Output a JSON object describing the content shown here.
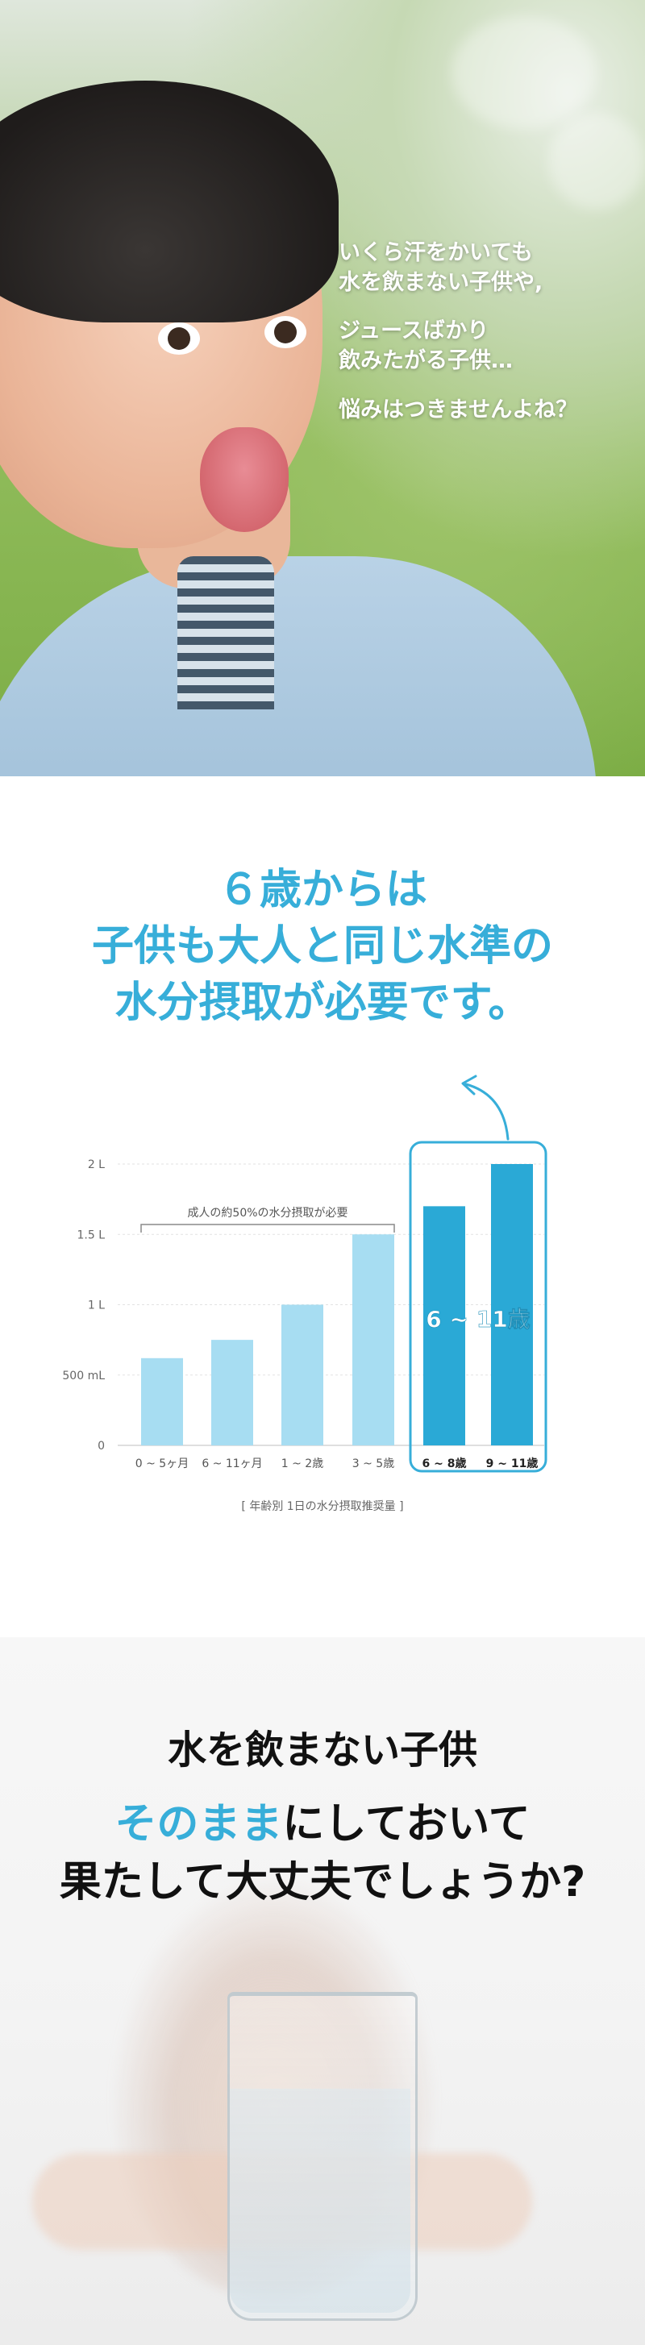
{
  "hero": {
    "lines": [
      "いくら汗をかいても",
      "水を飲まない子供や,",
      "ジュースばかり",
      "飲みたがる子供…",
      "悩みはつきませんよね？"
    ]
  },
  "headline": [
    "６歳からは",
    "子供も大人と同じ水準の",
    "水分摂取が必要です。"
  ],
  "chart_data": {
    "type": "bar",
    "categories": [
      "0 ~ 5ヶ月",
      "6 ~ 11ヶ月",
      "1 ~ 2歳",
      "3 ~ 5歳",
      "6 ~ 8歳",
      "9 ~ 11歳"
    ],
    "values": [
      0.62,
      0.75,
      1.0,
      1.5,
      1.7,
      2.0
    ],
    "unit": "L",
    "ylim": [
      0,
      2
    ],
    "y_ticks": [
      {
        "value": 0,
        "label": "0"
      },
      {
        "value": 0.5,
        "label": "500 mL"
      },
      {
        "value": 1,
        "label": "1 L"
      },
      {
        "value": 1.5,
        "label": "1.5 L"
      },
      {
        "value": 2,
        "label": "2 L"
      }
    ],
    "grid": true,
    "bracket_label": "成人の約50%の水分摂取が必要",
    "highlight_label": "6 ~ 11歳",
    "caption": "[ 年齢別 1日の水分摂取推奨量 ]",
    "colors": {
      "light": "#a7ddf2",
      "dark": "#2aa9d6",
      "accent": "#37aed9"
    }
  },
  "bottom": {
    "title": "水を飲まない子供",
    "line1_highlight": "そのまま",
    "line1_rest": "にしておいて",
    "line2": "果たして大丈夫でしょうか?"
  }
}
